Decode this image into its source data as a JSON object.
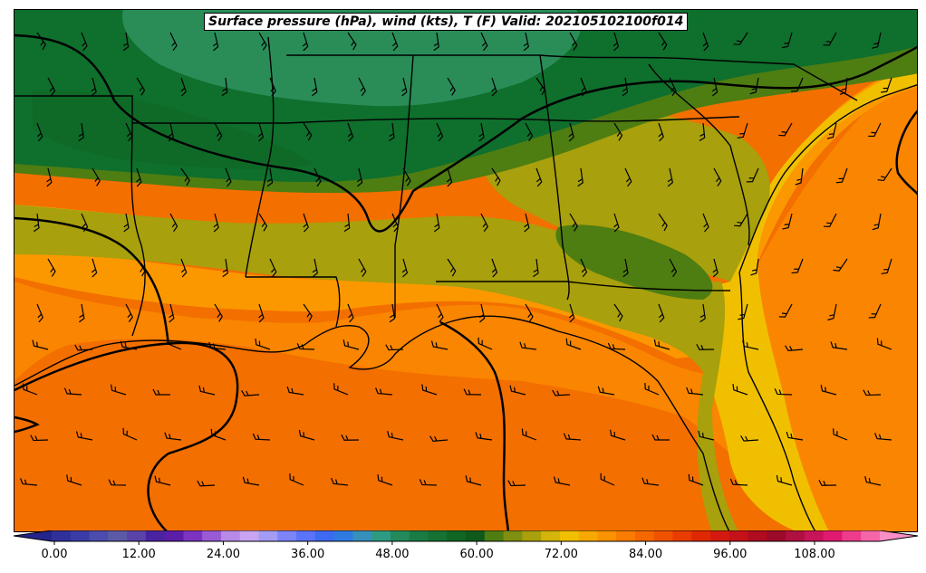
{
  "title": "Surface pressure (hPa), wind (kts), T (F) Valid: 202105102100f014",
  "colorbar": {
    "min": 0,
    "max": 120,
    "step": 3,
    "tick_labels": [
      "0.00",
      "12.00",
      "24.00",
      "36.00",
      "48.00",
      "60.00",
      "72.00",
      "84.00",
      "96.00",
      "108.00"
    ],
    "colors": [
      "#26248c",
      "#30309a",
      "#3b3ba6",
      "#4c4cae",
      "#5c5aa7",
      "#5a43a8",
      "#4a23a0",
      "#5d1ca8",
      "#7c33c2",
      "#9a5ad6",
      "#b78ae8",
      "#c9a4f2",
      "#a39bf4",
      "#7d84f8",
      "#5a73f8",
      "#3c6af0",
      "#2f7ae0",
      "#3590bc",
      "#2e9a82",
      "#248a5c",
      "#1a7c45",
      "#157232",
      "#106624",
      "#0f5a1a",
      "#4e7d12",
      "#7f8f10",
      "#a8a00c",
      "#d2b40a",
      "#f0c000",
      "#f7a800",
      "#fa9200",
      "#f97c00",
      "#f56800",
      "#f05200",
      "#e83c00",
      "#e02800",
      "#d41a10",
      "#c41218",
      "#b00c20",
      "#9c0a2a",
      "#b01040",
      "#c81458",
      "#e01a70",
      "#ee3c8c",
      "#f466a8",
      "#fa8ec6"
    ]
  },
  "map": {
    "fields": [
      {
        "name": "cold-north",
        "color": "#0f6f2c"
      },
      {
        "name": "mid-green",
        "color": "#2a8d58"
      },
      {
        "name": "olive-green",
        "color": "#4e7d12"
      },
      {
        "name": "olive",
        "color": "#a8a00c"
      },
      {
        "name": "yellow",
        "color": "#f0c000"
      },
      {
        "name": "light-orange",
        "color": "#fa9200"
      },
      {
        "name": "orange",
        "color": "#f97c00"
      },
      {
        "name": "deep-orange",
        "color": "#f56800"
      }
    ]
  }
}
